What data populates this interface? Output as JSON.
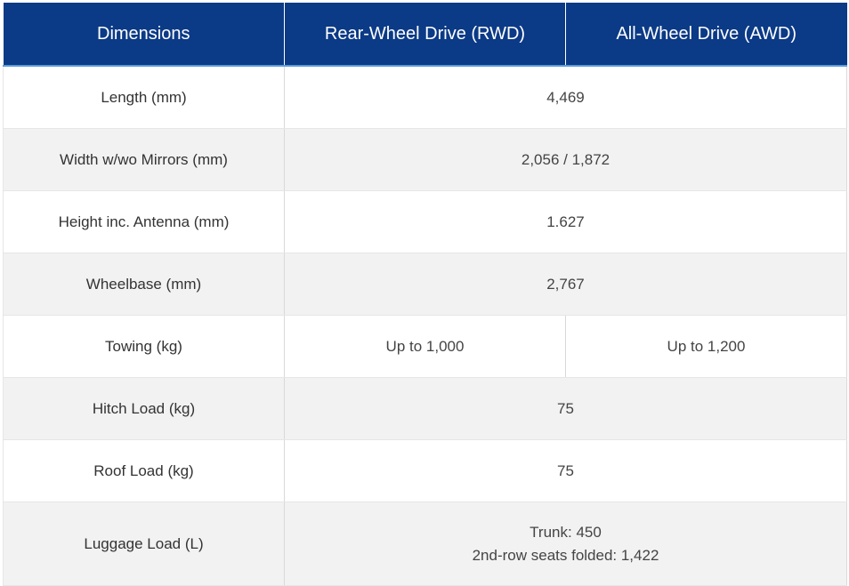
{
  "header": {
    "col_dimensions": "Dimensions",
    "col_rwd": "Rear-Wheel Drive (RWD)",
    "col_awd": "All-Wheel Drive (AWD)"
  },
  "rows": {
    "length": {
      "label": "Length (mm)",
      "value": "4,469"
    },
    "width": {
      "label": "Width w/wo Mirrors (mm)",
      "value": "2,056 / 1,872"
    },
    "height": {
      "label": "Height inc. Antenna (mm)",
      "value": "1.627"
    },
    "wheelbase": {
      "label": "Wheelbase (mm)",
      "value": "2,767"
    },
    "towing": {
      "label": "Towing (kg)",
      "rwd": "Up to 1,000",
      "awd": "Up to 1,200"
    },
    "hitch_load": {
      "label": "Hitch Load (kg)",
      "value": "75"
    },
    "roof_load": {
      "label": "Roof Load (kg)",
      "value": "75"
    },
    "luggage_load": {
      "label": "Luggage Load (L)",
      "line1": "Trunk: 450",
      "line2": "2nd-row seats folded: 1,422"
    }
  },
  "colors": {
    "header_bg": "#0b3a86",
    "header_text": "#ffffff",
    "row_alt_bg": "#f2f2f2"
  }
}
